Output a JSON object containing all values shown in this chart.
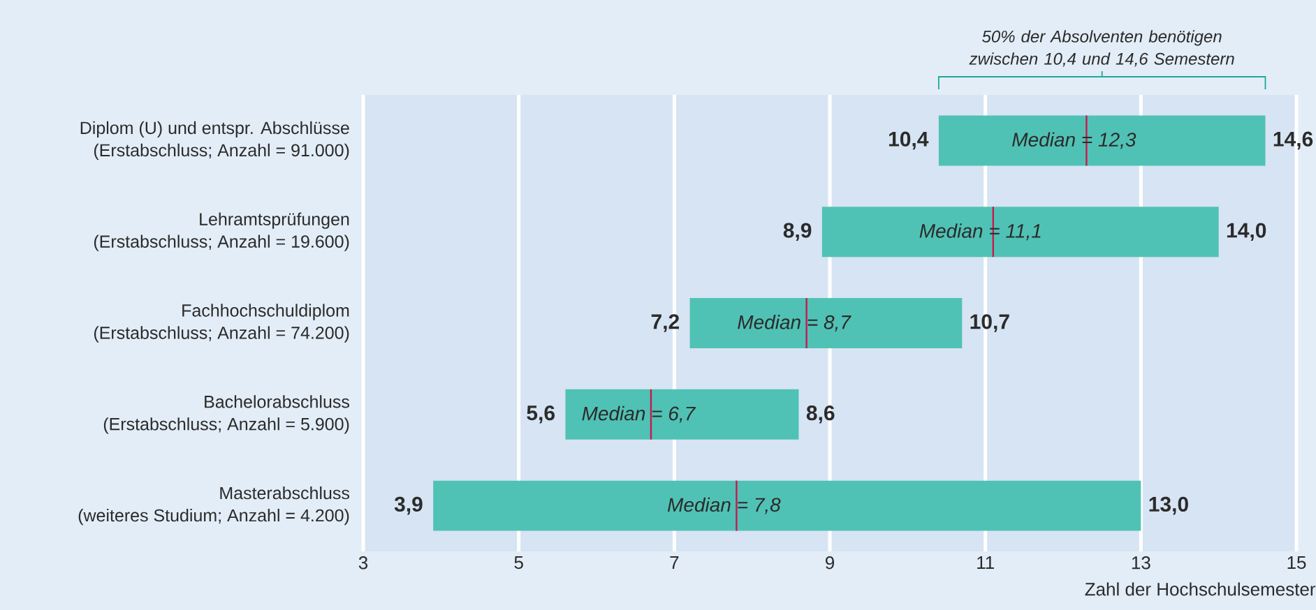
{
  "chart_data": {
    "type": "box",
    "orientation": "horizontal",
    "xlabel": "Zahl der Hochschulsemester",
    "categories": [
      "Diplom (U) und entspr. Abschlüsse\n(Erstabschluss; Anzahl = 91.000)",
      "Lehramtsprüfungen\n(Erstabschluss; Anzahl = 19.600)",
      "Fachhochschuldiplom\n(Erstabschluss; Anzahl = 74.200)",
      "Bachelorabschluss\n(Erstabschluss; Anzahl = 5.900)",
      "Masterabschluss\n(weiteres Studium; Anzahl = 4.200)"
    ],
    "boxes": [
      {
        "low": 10.4,
        "q1": 10.4,
        "median": 12.3,
        "q3": 14.6,
        "high": 14.6
      },
      {
        "low": 8.9,
        "q1": 8.9,
        "median": 11.1,
        "q3": 14.0,
        "high": 14.0
      },
      {
        "low": 7.2,
        "q1": 7.2,
        "median": 8.7,
        "q3": 10.7,
        "high": 10.7
      },
      {
        "low": 5.6,
        "q1": 5.6,
        "median": 6.7,
        "q3": 8.6,
        "high": 8.6
      },
      {
        "low": 3.9,
        "q1": 3.9,
        "median": 7.8,
        "q3": 13.0,
        "high": 13.0
      }
    ],
    "color": "#50c2b5",
    "xlim": [
      3,
      15
    ],
    "xticks": [
      3,
      5,
      7,
      9,
      11,
      13,
      15
    ],
    "grid": "x",
    "annotations": [
      "50% der Absolventen benötigen zwischen 10,4 und 14,6 Semestern",
      {
        "text": "10,4",
        "x": 10.4,
        "y": "Diplom (U) und entspr. Abschlüsse\n(Erstabschluss; Anzahl = 91.000)"
      },
      {
        "text": "Median = 12,3",
        "x": 12.3,
        "y": "Diplom (U) und entspr. Abschlüsse\n(Erstabschluss; Anzahl = 91.000)"
      },
      {
        "text": "14,6",
        "x": 14.6,
        "y": "Diplom (U) und entspr. Abschlüsse\n(Erstabschluss; Anzahl = 91.000)"
      },
      {
        "text": "8,9",
        "x": 8.9,
        "y": "Lehramtsprüfungen\n(Erstabschluss; Anzahl = 19.600)"
      },
      {
        "text": "Median = 11,1",
        "x": 11.1,
        "y": "Lehramtsprüfungen\n(Erstabschluss; Anzahl = 19.600)"
      },
      {
        "text": "14,0",
        "x": 14.0,
        "y": "Lehramtsprüfungen\n(Erstabschluss; Anzahl = 19.600)"
      },
      {
        "text": "7,2",
        "x": 7.2,
        "y": "Fachhochschuldiplom\n(Erstabschluss; Anzahl = 74.200)"
      },
      {
        "text": "Median = 8,7",
        "x": 8.7,
        "y": "Fachhochschuldiplom\n(Erstabschluss; Anzahl = 74.200)"
      },
      {
        "text": "10,7",
        "x": 10.7,
        "y": "Fachhochschuldiplom\n(Erstabschluss; Anzahl = 74.200)"
      },
      {
        "text": "5,6",
        "x": 5.6,
        "y": "Bachelorabschluss\n(Erstabschluss; Anzahl = 5.900)"
      },
      {
        "text": "Median = 6,7",
        "x": 6.7,
        "y": "Bachelorabschluss\n(Erstabschluss; Anzahl = 5.900)"
      },
      {
        "text": "8,6",
        "x": 8.6,
        "y": "Bachelorabschluss\n(Erstabschluss; Anzahl = 5.900)"
      },
      {
        "text": "3,9",
        "x": 3.9,
        "y": "Masterabschluss\n(weiteres Studium; Anzahl = 4.200)"
      },
      {
        "text": "Median = 7,8",
        "x": 7.8,
        "y": "Masterabschluss\n(weiteres Studium; Anzahl = 4.200)"
      },
      {
        "text": "13,0",
        "x": 13.0,
        "y": "Masterabschluss\n(weiteres Studium; Anzahl = 4.200)"
      }
    ]
  }
}
